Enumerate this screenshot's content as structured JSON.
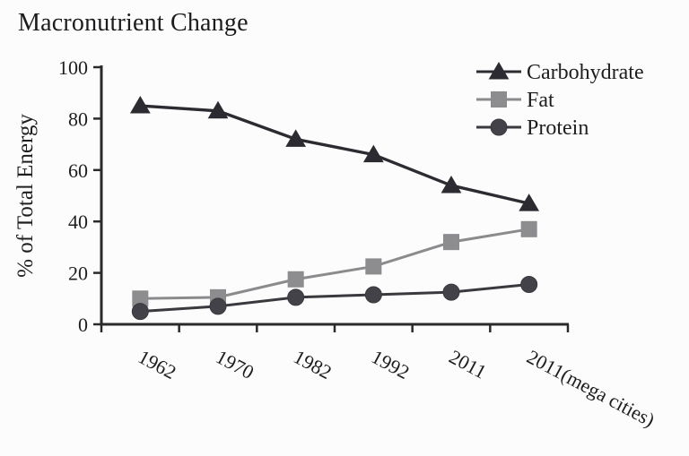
{
  "page": {
    "background_color": "#fcfcfc",
    "text_color": "#1c1c1e"
  },
  "chart_data": {
    "type": "line",
    "title": "Macronutrient Change",
    "xlabel": "",
    "ylabel": "% of Total Energy",
    "ylim": [
      0,
      100
    ],
    "y_ticks": [
      0,
      20,
      40,
      60,
      80,
      100
    ],
    "categories": [
      "1962",
      "1970",
      "1982",
      "1992",
      "2011",
      "2011(mega cities)"
    ],
    "x_tick_label_rotation_deg": 28,
    "grid": false,
    "legend_position": "top-right-inside",
    "axis_color": "#2a2a2c",
    "series": [
      {
        "name": "Carbohydrate",
        "values": [
          85,
          83,
          72,
          66,
          54,
          47
        ],
        "marker": "triangle",
        "line_color": "#2b2b31",
        "marker_color": "#2b2b31"
      },
      {
        "name": "Fat",
        "values": [
          10,
          10.5,
          17.5,
          22.5,
          32,
          37
        ],
        "marker": "square",
        "line_color": "#8b8b8e",
        "marker_color": "#8d8d90"
      },
      {
        "name": "Protein",
        "values": [
          5,
          7,
          10.5,
          11.5,
          12.5,
          15.5
        ],
        "marker": "circle",
        "line_color": "#39393e",
        "marker_color": "#424248"
      }
    ]
  }
}
